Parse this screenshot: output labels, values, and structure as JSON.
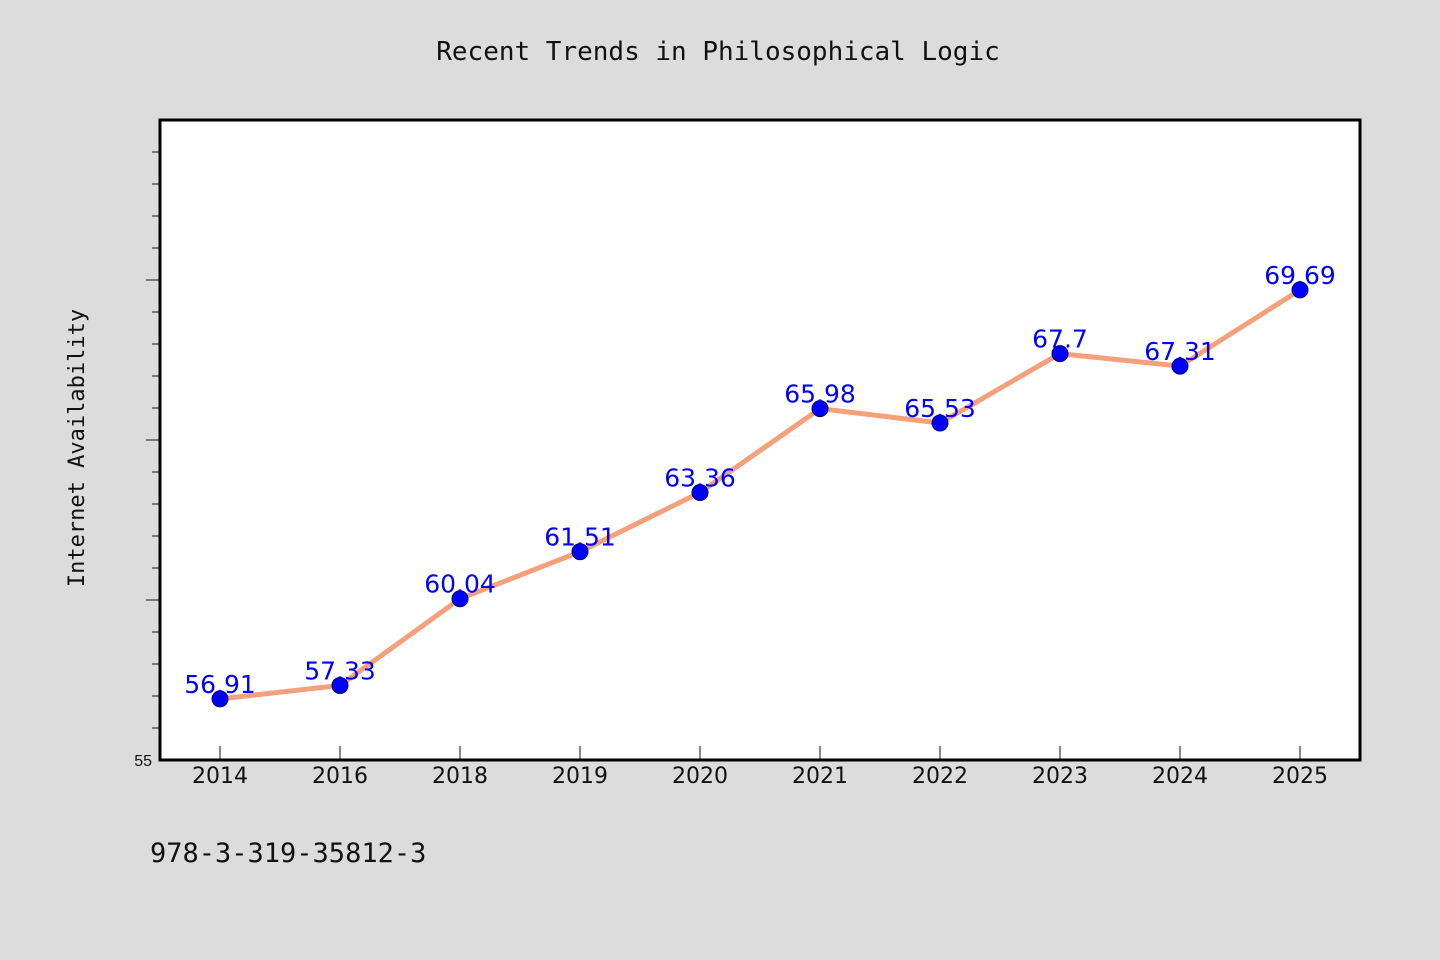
{
  "chart_data": {
    "type": "line",
    "title": "Recent Trends in Philosophical Logic",
    "xlabel": "",
    "ylabel": "Internet Availability",
    "categories": [
      "2014",
      "2016",
      "2018",
      "2019",
      "2020",
      "2021",
      "2022",
      "2023",
      "2024",
      "2025"
    ],
    "series": [
      {
        "values": [
          56.91,
          57.33,
          60.04,
          61.51,
          63.36,
          65.98,
          65.53,
          67.7,
          67.31,
          69.69
        ]
      }
    ],
    "data_labels": [
      "56.91",
      "57.33",
      "60.04",
      "61.51",
      "63.36",
      "65.98",
      "65.53",
      "67.7",
      "67.31",
      "69.69"
    ],
    "ylim": [
      55,
      75
    ],
    "y_tick_labels": [
      {
        "value": 55,
        "label": "55"
      }
    ],
    "grid": false,
    "legend": "none",
    "colors": {
      "line": "#f4a07a",
      "marker_fill": "#0000ff",
      "data_label": "#0000ff",
      "page_background": "#dcdcdc",
      "plot_background": "#ffffff",
      "frame": "#000000"
    }
  },
  "footer": {
    "isbn": "978-3-319-35812-3"
  }
}
